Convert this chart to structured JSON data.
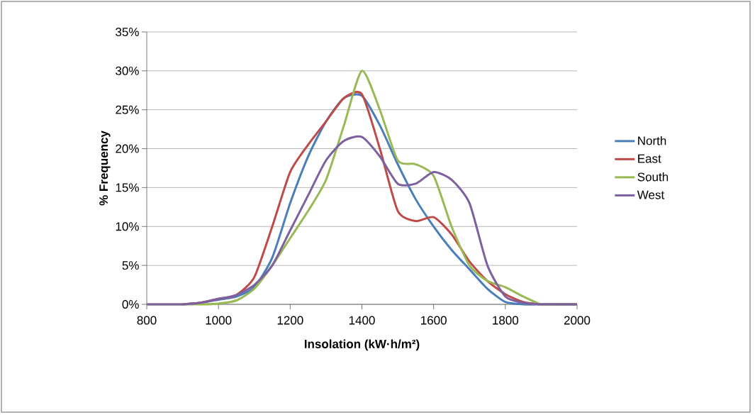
{
  "chart_data": {
    "type": "line",
    "xlabel": "Insolation (kW·h/m²)",
    "ylabel": "% Frequency",
    "x": [
      800,
      850,
      900,
      950,
      1000,
      1050,
      1100,
      1150,
      1200,
      1250,
      1300,
      1350,
      1400,
      1450,
      1500,
      1550,
      1600,
      1650,
      1700,
      1750,
      1800,
      1850,
      1900,
      1950,
      2000
    ],
    "series": [
      {
        "name": "North",
        "color": "#4a7ebb",
        "values": [
          null,
          null,
          0,
          0.2,
          0.6,
          1.0,
          2.2,
          6,
          13,
          19,
          23.5,
          26.5,
          26.8,
          23,
          18,
          13.5,
          10,
          7,
          4.5,
          2,
          0.3,
          0,
          0,
          0,
          0
        ]
      },
      {
        "name": "East",
        "color": "#be4b48",
        "values": [
          null,
          null,
          0,
          0.2,
          0.7,
          1.2,
          3.5,
          10,
          17,
          20.5,
          23.5,
          26.5,
          27,
          20,
          12,
          10.7,
          11.2,
          9,
          5.5,
          3,
          1.3,
          0.3,
          0,
          0,
          0
        ]
      },
      {
        "name": "South",
        "color": "#98b954",
        "values": [
          0,
          0,
          0,
          0,
          0.1,
          0.5,
          2,
          5,
          8.5,
          12,
          16,
          23,
          30,
          25,
          18.5,
          18,
          16.5,
          10,
          5,
          3,
          2.2,
          1,
          0,
          0,
          0
        ]
      },
      {
        "name": "West",
        "color": "#7d60a0",
        "values": [
          0,
          0,
          0,
          0.2,
          0.7,
          1.2,
          2.5,
          5,
          9.5,
          14,
          18.5,
          21,
          21.5,
          19,
          15.5,
          15.5,
          17,
          16,
          13,
          5,
          1,
          0.2,
          0,
          0,
          0
        ]
      }
    ],
    "xlim": [
      800,
      2000
    ],
    "xticks": [
      800,
      1000,
      1200,
      1400,
      1600,
      1800,
      2000
    ],
    "ylim": [
      0,
      35
    ],
    "yticks": [
      {
        "value": 0,
        "label": "0%"
      },
      {
        "value": 5,
        "label": "5%"
      },
      {
        "value": 10,
        "label": "10%"
      },
      {
        "value": 15,
        "label": "15%"
      },
      {
        "value": 20,
        "label": "20%"
      },
      {
        "value": 25,
        "label": "25%"
      },
      {
        "value": 30,
        "label": "30%"
      },
      {
        "value": 35,
        "label": "35%"
      }
    ],
    "grid": "y",
    "legend": "right",
    "marker": "none",
    "line_style": "solid"
  }
}
